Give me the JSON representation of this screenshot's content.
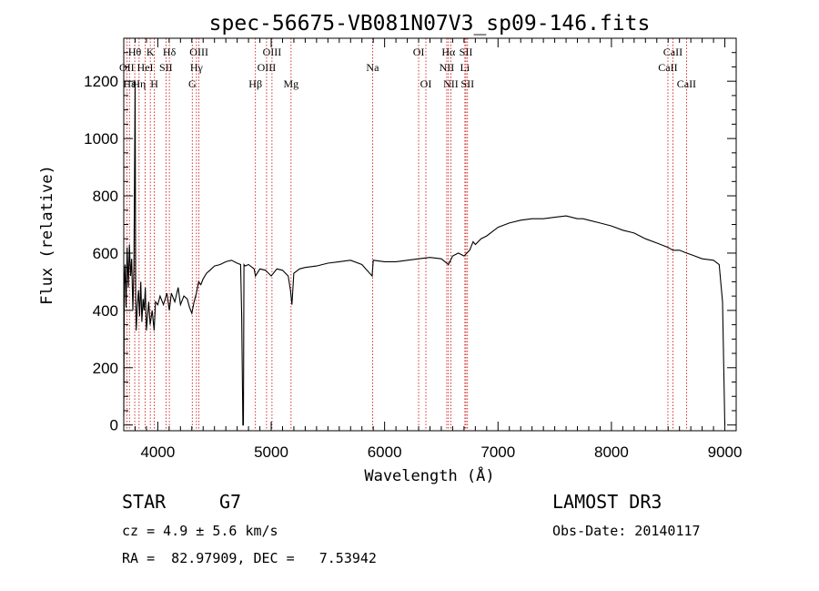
{
  "chart_data": {
    "type": "line",
    "title": "spec-56675-VB081N07V3_sp09-146.fits",
    "xlabel": "Wavelength (Å)",
    "ylabel": "Flux (relative)",
    "xlim": [
      3700,
      9100
    ],
    "ylim": [
      -20,
      1350
    ],
    "xticks": [
      4000,
      5000,
      6000,
      7000,
      8000,
      9000
    ],
    "yticks": [
      0,
      200,
      400,
      600,
      800,
      1000,
      1200
    ],
    "spectrum": {
      "wavelength": [
        3700,
        3705,
        3712,
        3720,
        3730,
        3740,
        3750,
        3760,
        3770,
        3780,
        3790,
        3800,
        3805,
        3810,
        3820,
        3830,
        3840,
        3850,
        3860,
        3870,
        3880,
        3890,
        3900,
        3920,
        3933,
        3950,
        3968,
        3980,
        4000,
        4020,
        4050,
        4080,
        4102,
        4120,
        4150,
        4180,
        4200,
        4230,
        4260,
        4280,
        4300,
        4320,
        4340,
        4360,
        4380,
        4400,
        4430,
        4460,
        4500,
        4550,
        4600,
        4650,
        4700,
        4730,
        4740,
        4750,
        4755,
        4760,
        4770,
        4800,
        4850,
        4861,
        4900,
        4950,
        5000,
        5050,
        5100,
        5150,
        5170,
        5183,
        5200,
        5250,
        5300,
        5400,
        5500,
        5600,
        5700,
        5800,
        5890,
        5900,
        6000,
        6100,
        6200,
        6300,
        6400,
        6500,
        6563,
        6600,
        6650,
        6700,
        6750,
        6780,
        6800,
        6850,
        6900,
        7000,
        7100,
        7200,
        7300,
        7400,
        7500,
        7600,
        7700,
        7750,
        7800,
        7900,
        8000,
        8100,
        8200,
        8300,
        8400,
        8500,
        8542,
        8600,
        8662,
        8700,
        8800,
        8900,
        8950,
        8980,
        9000
      ],
      "flux": [
        30,
        490,
        560,
        410,
        620,
        480,
        630,
        520,
        580,
        400,
        560,
        1200,
        450,
        330,
        420,
        470,
        380,
        500,
        360,
        440,
        400,
        480,
        330,
        430,
        350,
        400,
        330,
        430,
        420,
        450,
        420,
        460,
        400,
        460,
        430,
        480,
        420,
        450,
        440,
        410,
        390,
        430,
        460,
        500,
        490,
        510,
        530,
        540,
        555,
        560,
        570,
        575,
        565,
        560,
        380,
        0,
        0,
        560,
        555,
        560,
        545,
        520,
        545,
        540,
        520,
        545,
        540,
        520,
        470,
        420,
        530,
        545,
        550,
        555,
        565,
        570,
        575,
        560,
        520,
        575,
        570,
        570,
        575,
        580,
        585,
        580,
        560,
        590,
        600,
        590,
        610,
        640,
        630,
        650,
        660,
        690,
        705,
        715,
        720,
        720,
        725,
        730,
        720,
        720,
        715,
        705,
        695,
        680,
        670,
        650,
        635,
        620,
        610,
        610,
        600,
        595,
        580,
        575,
        560,
        430,
        0
      ]
    },
    "lines": [
      {
        "label": "Hθ",
        "wl": 3797,
        "row": 0
      },
      {
        "label": "OII",
        "wl": 3727,
        "row": 1
      },
      {
        "label": "Hε",
        "wl": 3750,
        "row": 2
      },
      {
        "label": "K",
        "wl": 3934,
        "row": 0
      },
      {
        "label": "HeI",
        "wl": 3889,
        "row": 1
      },
      {
        "label": "Hη",
        "wl": 3835,
        "row": 2
      },
      {
        "label": "Hδ",
        "wl": 4102,
        "row": 0
      },
      {
        "label": "SII",
        "wl": 4072,
        "row": 1
      },
      {
        "label": "H",
        "wl": 3969,
        "row": 2
      },
      {
        "label": "OIII",
        "wl": 4363,
        "row": 0
      },
      {
        "label": "Hγ",
        "wl": 4341,
        "row": 1
      },
      {
        "label": "G",
        "wl": 4304,
        "row": 2
      },
      {
        "label": "OIII",
        "wl": 5007,
        "row": 0
      },
      {
        "label": "OIII",
        "wl": 4959,
        "row": 1
      },
      {
        "label": "Hβ",
        "wl": 4861,
        "row": 2
      },
      {
        "label": "Mg",
        "wl": 5175,
        "row": 2
      },
      {
        "label": "Na",
        "wl": 5894,
        "row": 1
      },
      {
        "label": "OI",
        "wl": 6300,
        "row": 0
      },
      {
        "label": "OI",
        "wl": 6364,
        "row": 2
      },
      {
        "label": "Hα",
        "wl": 6563,
        "row": 0
      },
      {
        "label": "NII",
        "wl": 6548,
        "row": 1
      },
      {
        "label": "NII",
        "wl": 6584,
        "row": 2
      },
      {
        "label": "SII",
        "wl": 6717,
        "row": 0
      },
      {
        "label": "Li",
        "wl": 6708,
        "row": 1
      },
      {
        "label": "SII",
        "wl": 6731,
        "row": 2
      },
      {
        "label": "CaII",
        "wl": 8542,
        "row": 0
      },
      {
        "label": "CaII",
        "wl": 8498,
        "row": 1
      },
      {
        "label": "CaII",
        "wl": 8662,
        "row": 2
      }
    ],
    "colors": {
      "spectrum": "#000000",
      "lines": "#cc0000",
      "axes": "#000000"
    }
  },
  "info": {
    "class": "STAR",
    "subclass": "G7",
    "survey": "LAMOST DR3",
    "cz": "cz = 4.9 ± 5.6 km/s",
    "obs_date": "Obs-Date: 20140117",
    "radec": "RA =  82.97909, DEC =   7.53942"
  }
}
